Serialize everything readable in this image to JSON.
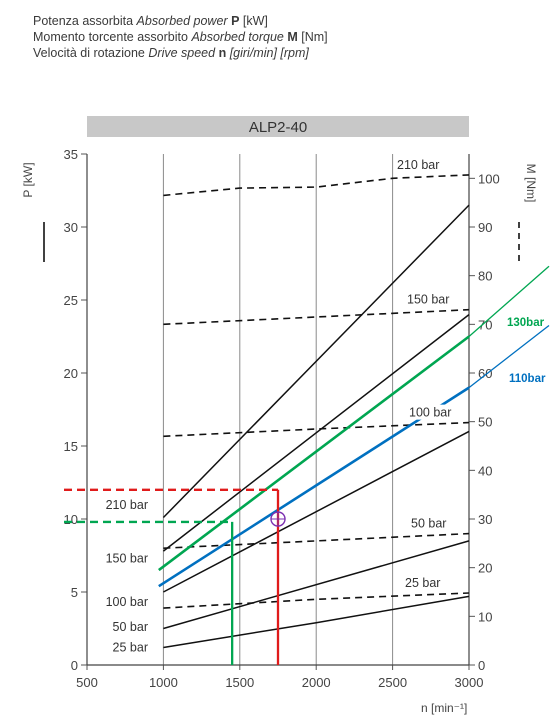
{
  "legend": [
    {
      "it_label": "Potenza assorbita",
      "en_label": "Absorbed power",
      "symbol": "P",
      "unit": "[kW]"
    },
    {
      "it_label": "Momento torcente assorbito",
      "en_label": "Absorbed torque",
      "symbol": "M",
      "unit": "[Nm]"
    },
    {
      "it_label": "Velocità di rotazione",
      "en_label": "Drive speed",
      "symbol": "n",
      "unit": "[giri/min] [rpm]"
    }
  ],
  "chart_data": {
    "type": "line",
    "title": "ALP2-40",
    "xlabel": "n [min⁻¹]",
    "ylabel_left": "P [kW]",
    "ylabel_right": "M [Nm]",
    "xlim": [
      500,
      3000
    ],
    "ylim_left": [
      0,
      35
    ],
    "ylim_right": [
      0,
      105
    ],
    "x_ticks": [
      "500",
      "1000",
      "1500",
      "2000",
      "2500",
      "3000"
    ],
    "y_left_ticks": [
      "0",
      "5",
      "10",
      "15",
      "20",
      "25",
      "30",
      "35"
    ],
    "y_right_ticks": [
      "0",
      "10",
      "20",
      "30",
      "40",
      "50",
      "60",
      "70",
      "80",
      "90",
      "100"
    ],
    "grid": true,
    "power_series": [
      {
        "name": "210 bar",
        "points": [
          [
            1000,
            10.1
          ],
          [
            3000,
            31.5
          ]
        ]
      },
      {
        "name": "150 bar",
        "points": [
          [
            1000,
            7.8
          ],
          [
            3000,
            24.0
          ]
        ]
      },
      {
        "name": "100 bar",
        "points": [
          [
            1000,
            5.0
          ],
          [
            3000,
            16.0
          ]
        ]
      },
      {
        "name": "50 bar",
        "points": [
          [
            1000,
            2.5
          ],
          [
            3000,
            8.5
          ]
        ]
      },
      {
        "name": "25 bar",
        "points": [
          [
            1000,
            1.2
          ],
          [
            2000,
            2.9
          ],
          [
            3000,
            4.7
          ]
        ]
      }
    ],
    "torque_series": [
      {
        "name": "210 bar",
        "points": [
          [
            1000,
            96.5
          ],
          [
            1500,
            98.0
          ],
          [
            2000,
            98.2
          ],
          [
            2500,
            100.0
          ],
          [
            3000,
            100.7
          ]
        ]
      },
      {
        "name": "150 bar",
        "points": [
          [
            1000,
            70.0
          ],
          [
            2000,
            71.5
          ],
          [
            3000,
            73.0
          ]
        ]
      },
      {
        "name": "100 bar",
        "points": [
          [
            1000,
            47.0
          ],
          [
            2000,
            48.5
          ],
          [
            3000,
            49.8
          ]
        ]
      },
      {
        "name": "50 bar",
        "points": [
          [
            1000,
            24.0
          ],
          [
            2000,
            25.5
          ],
          [
            3000,
            27.0
          ]
        ]
      },
      {
        "name": "25 bar",
        "points": [
          [
            1000,
            11.7
          ],
          [
            2000,
            13.5
          ],
          [
            3000,
            14.8
          ]
        ]
      }
    ],
    "overlay_series": [
      {
        "name": "130bar",
        "color": "#00a651",
        "points": [
          [
            970,
            6.5
          ],
          [
            3000,
            22.5
          ]
        ]
      },
      {
        "name": "110bar",
        "color": "#0070c0",
        "points": [
          [
            970,
            5.4
          ],
          [
            3000,
            19.0
          ]
        ]
      }
    ],
    "reference_lines": [
      {
        "color": "#e01b1b",
        "x": 1750,
        "y": 12.0
      },
      {
        "color": "#00a651",
        "x": 1450,
        "y": 9.8
      }
    ],
    "marker": {
      "x": 1750,
      "y": 10.0,
      "color": "#7b2fb0"
    },
    "colors": {
      "black": "#111111",
      "green": "#00a651",
      "blue": "#0070c0",
      "red": "#e01b1b",
      "title_bg": "#c8c8c8"
    }
  }
}
